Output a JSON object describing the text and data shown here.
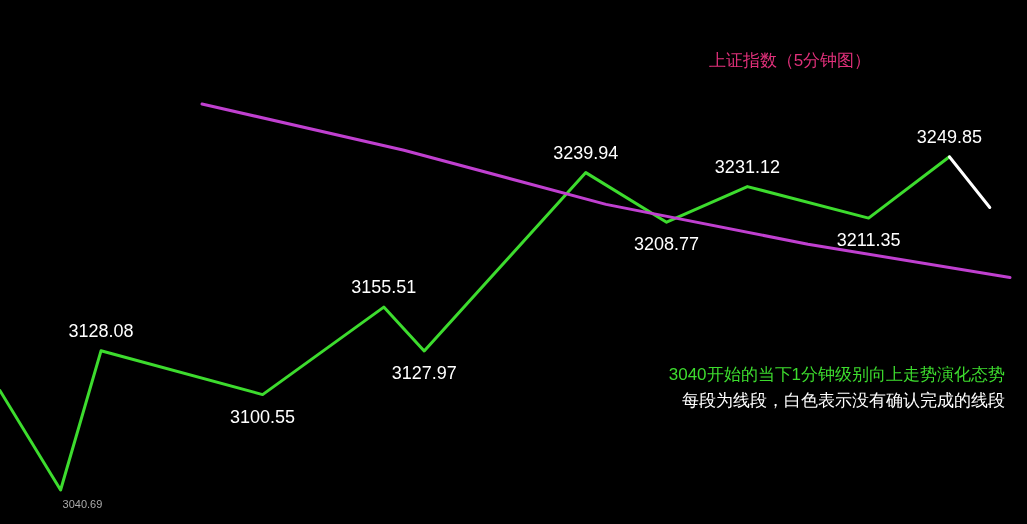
{
  "chart_data": {
    "type": "line",
    "title": "上证指数（5分钟图）",
    "tick_labels": false,
    "marker": "none",
    "line_style": "solid",
    "categories": [
      null,
      null,
      null,
      null,
      null,
      null,
      null,
      null,
      null,
      null,
      null,
      null,
      null,
      null,
      null,
      null,
      null,
      null,
      null,
      null,
      null,
      null,
      null,
      null,
      null,
      null,
      null,
      null,
      null,
      null,
      null,
      null,
      null,
      null,
      null,
      null,
      null,
      null,
      null,
      null,
      null,
      null,
      null,
      null,
      null,
      null,
      null,
      null,
      null,
      null,
      null
    ],
    "annotations": [
      "3040开始的当下1分钟级别向上走势演化态势",
      "每段为线段，白色表示没有确认完成的线段"
    ],
    "series": [
      {
        "color": "#3ddc2e",
        "values": [
          3103,
          null,
          null,
          3040.69,
          null,
          3128.08,
          null,
          null,
          null,
          null,
          null,
          null,
          null,
          3100.55,
          null,
          null,
          null,
          null,
          null,
          3155.51,
          null,
          3127.97,
          null,
          null,
          null,
          null,
          null,
          null,
          null,
          3239.94,
          null,
          null,
          null,
          3208.77,
          null,
          null,
          null,
          3231.12,
          null,
          null,
          null,
          null,
          null,
          3211.35,
          null,
          null,
          null,
          3249.85,
          null,
          null,
          null
        ],
        "value_labels": [
          null,
          null,
          null,
          "3040.69",
          null,
          "3128.08",
          null,
          null,
          null,
          null,
          null,
          null,
          null,
          "3100.55",
          null,
          null,
          null,
          null,
          null,
          "3155.51",
          null,
          "3127.97",
          null,
          null,
          null,
          null,
          null,
          null,
          null,
          "3239.94",
          null,
          null,
          null,
          "3208.77",
          null,
          null,
          null,
          "3231.12",
          null,
          null,
          null,
          null,
          null,
          "3211.35",
          null,
          null,
          null,
          "3249.85",
          null,
          null,
          null
        ]
      },
      {
        "color": "#ffffff",
        "values": [
          null,
          null,
          null,
          null,
          null,
          null,
          null,
          null,
          null,
          null,
          null,
          null,
          null,
          null,
          null,
          null,
          null,
          null,
          null,
          null,
          null,
          null,
          null,
          null,
          null,
          null,
          null,
          null,
          null,
          null,
          null,
          null,
          null,
          null,
          null,
          null,
          null,
          null,
          null,
          null,
          null,
          null,
          null,
          null,
          null,
          null,
          null,
          3249.85,
          null,
          3218,
          null
        ]
      },
      {
        "color": "#c040d0",
        "values": [
          null,
          null,
          null,
          null,
          null,
          null,
          null,
          null,
          null,
          null,
          3283,
          null,
          null,
          null,
          null,
          null,
          null,
          null,
          null,
          null,
          3254,
          null,
          null,
          null,
          null,
          null,
          null,
          null,
          null,
          null,
          3220,
          null,
          null,
          null,
          null,
          null,
          null,
          null,
          null,
          null,
          3195,
          null,
          null,
          null,
          null,
          null,
          null,
          null,
          null,
          null,
          3174
        ]
      }
    ]
  }
}
